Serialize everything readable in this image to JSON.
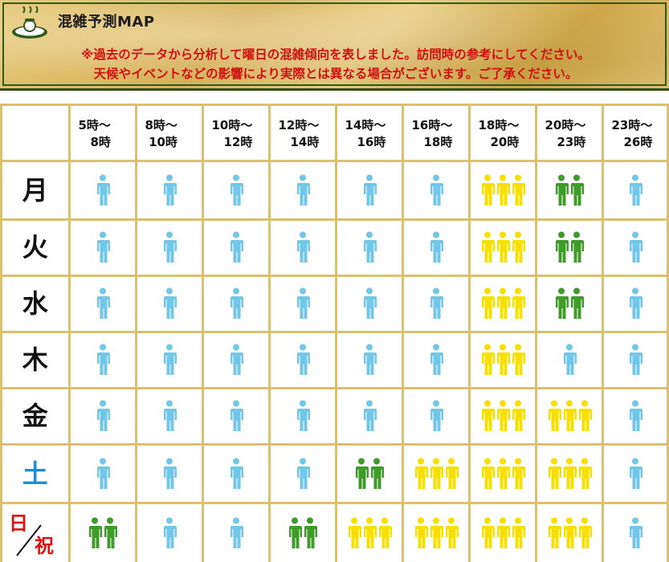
{
  "header": {
    "title": "混雑予測MAP",
    "note_line1": "※過去のデータから分析して曜日の混雑傾向を表しました。訪問時の参考にしてください。",
    "note_line2": "天候やイベントなどの影響により実際とは異なる場合がございます。ご了承ください。"
  },
  "logo_icon": "hot-spring-person-icon",
  "colors": {
    "low": "#72c6e8",
    "medium": "#3f9b2a",
    "high": "#f7e000",
    "saturday": "#1f8fd1",
    "sunday": "#e01010",
    "grid_line": "#d9c16e",
    "header_border": "#2f5a1a"
  },
  "time_slots": [
    {
      "l1": "5時～",
      "l2": "8時"
    },
    {
      "l1": "8時～",
      "l2": "10時"
    },
    {
      "l1": "10時～",
      "l2": "12時"
    },
    {
      "l1": "12時～",
      "l2": "14時"
    },
    {
      "l1": "14時～",
      "l2": "16時"
    },
    {
      "l1": "16時～",
      "l2": "18時"
    },
    {
      "l1": "18時～",
      "l2": "20時"
    },
    {
      "l1": "20時～",
      "l2": "23時"
    },
    {
      "l1": "23時～",
      "l2": "26時"
    }
  ],
  "days": [
    {
      "label": "月",
      "color": "#111111",
      "levels": [
        1,
        1,
        1,
        1,
        1,
        1,
        3,
        2,
        1
      ]
    },
    {
      "label": "火",
      "color": "#111111",
      "levels": [
        1,
        1,
        1,
        1,
        1,
        1,
        3,
        2,
        1
      ]
    },
    {
      "label": "水",
      "color": "#111111",
      "levels": [
        1,
        1,
        1,
        1,
        1,
        1,
        3,
        2,
        1
      ]
    },
    {
      "label": "木",
      "color": "#111111",
      "levels": [
        1,
        1,
        1,
        1,
        1,
        1,
        3,
        1,
        1
      ]
    },
    {
      "label": "金",
      "color": "#111111",
      "levels": [
        1,
        1,
        1,
        1,
        1,
        1,
        3,
        3,
        1
      ]
    },
    {
      "label": "土",
      "color": "#1f8fd1",
      "levels": [
        1,
        1,
        1,
        1,
        2,
        3,
        3,
        3,
        1
      ]
    },
    {
      "label": "日",
      "label2": "祝",
      "color": "#e01010",
      "levels": [
        2,
        1,
        1,
        2,
        3,
        3,
        3,
        3,
        1
      ]
    }
  ]
}
